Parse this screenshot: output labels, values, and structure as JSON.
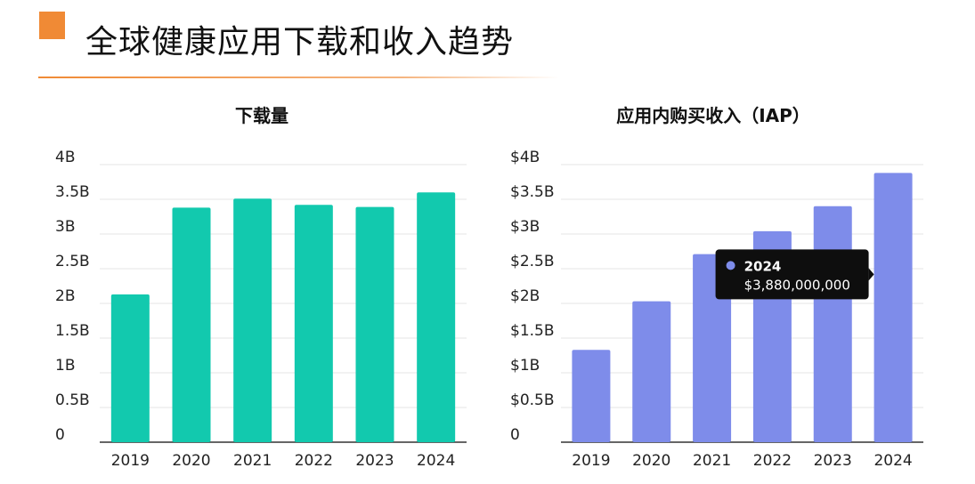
{
  "page": {
    "title": "全球健康应用下载和收入趋势",
    "accent_color": "#F08A35",
    "rule_color": "#F5B580"
  },
  "chart_data": [
    {
      "type": "bar",
      "title": "下载量",
      "categories": [
        "2019",
        "2020",
        "2021",
        "2022",
        "2023",
        "2024"
      ],
      "values": [
        2.13,
        3.38,
        3.51,
        3.42,
        3.39,
        3.6
      ],
      "ylim": [
        0,
        4
      ],
      "yticks": [
        0,
        0.5,
        1,
        1.5,
        2,
        2.5,
        3,
        3.5,
        4
      ],
      "ytick_labels": [
        "0",
        "0.5B",
        "1B",
        "1.5B",
        "2B",
        "2.5B",
        "3B",
        "3.5B",
        "4B"
      ],
      "xlabel": "",
      "ylabel": "",
      "grid": true,
      "color": "#12C9AE"
    },
    {
      "type": "bar",
      "title": "应用内购买收入（IAP）",
      "categories": [
        "2019",
        "2020",
        "2021",
        "2022",
        "2023",
        "2024"
      ],
      "values": [
        1.33,
        2.03,
        2.71,
        3.04,
        3.4,
        3.88
      ],
      "ylim": [
        0,
        4
      ],
      "yticks": [
        0,
        0.5,
        1,
        1.5,
        2,
        2.5,
        3,
        3.5,
        4
      ],
      "ytick_labels": [
        "0",
        "$0.5B",
        "$1B",
        "$1.5B",
        "$2B",
        "$2.5B",
        "$3B",
        "$3.5B",
        "$4B"
      ],
      "xlabel": "",
      "ylabel": "",
      "grid": true,
      "color": "#7E8CEA",
      "tooltip": {
        "category": "2024",
        "value_label": "$3,880,000,000",
        "background": "#0E0E0E"
      }
    }
  ]
}
